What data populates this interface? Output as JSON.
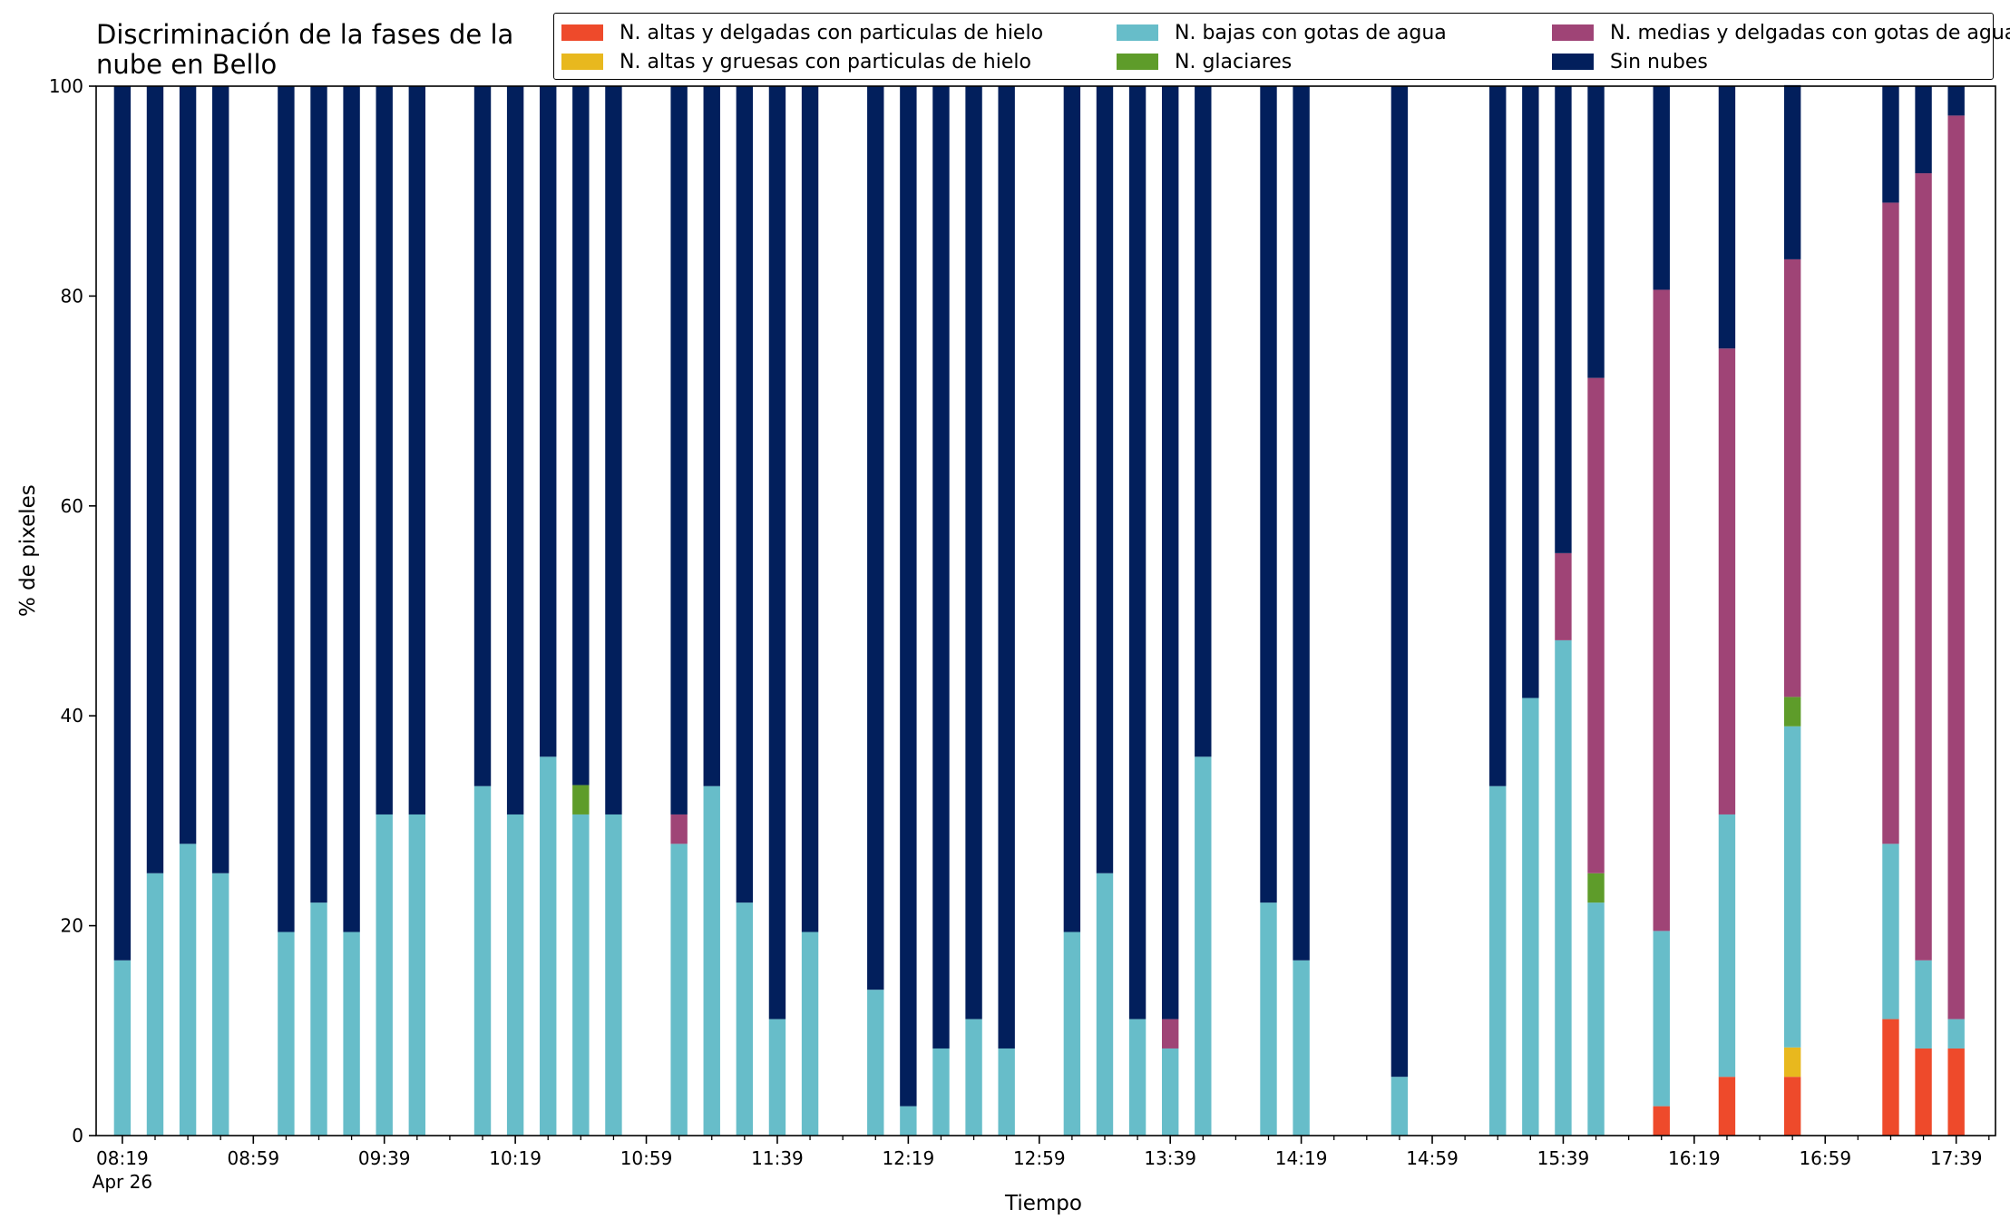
{
  "chart_data": {
    "type": "bar",
    "stacked": true,
    "title": "Discriminación de la fases de la\nnube en Bello",
    "xlabel": "Tiempo",
    "ylabel": "% de pixeles",
    "ylim": [
      0,
      100
    ],
    "yticks": [
      "0",
      "20",
      "40",
      "60",
      "80",
      "100"
    ],
    "xlim": [
      "08:11",
      "17:51"
    ],
    "xticks_labeled": [
      "08:19",
      "08:59",
      "09:39",
      "10:19",
      "10:59",
      "11:39",
      "12:19",
      "12:59",
      "13:39",
      "14:19",
      "14:59",
      "15:39",
      "16:19",
      "16:59",
      "17:39"
    ],
    "xticks_minor": [
      "08:29",
      "08:39",
      "08:49",
      "09:09",
      "09:19",
      "09:29",
      "09:49",
      "09:59",
      "10:09",
      "10:29",
      "10:39",
      "10:49",
      "11:09",
      "11:19",
      "11:29",
      "11:49",
      "11:59",
      "12:09",
      "12:29",
      "12:39",
      "12:49",
      "13:09",
      "13:19",
      "13:29",
      "13:49",
      "13:59",
      "14:09",
      "14:29",
      "14:39",
      "14:49",
      "15:09",
      "15:19",
      "15:29",
      "15:49",
      "15:59",
      "16:09",
      "16:29",
      "16:39",
      "16:49",
      "17:09",
      "17:19",
      "17:29",
      "17:49"
    ],
    "date_label": "Apr 26",
    "legend_position": "top",
    "legend_columns": 3,
    "grid": false,
    "x": [
      "08:19",
      "08:29",
      "08:39",
      "08:49",
      "09:09",
      "09:19",
      "09:29",
      "09:39",
      "09:49",
      "10:09",
      "10:19",
      "10:29",
      "10:39",
      "10:49",
      "11:09",
      "11:19",
      "11:29",
      "11:39",
      "11:49",
      "12:09",
      "12:19",
      "12:29",
      "12:39",
      "12:49",
      "13:09",
      "13:19",
      "13:29",
      "13:39",
      "13:49",
      "14:09",
      "14:19",
      "14:49",
      "15:19",
      "15:29",
      "15:39",
      "15:49",
      "16:09",
      "16:29",
      "16:49",
      "17:19",
      "17:29",
      "17:39"
    ],
    "series": [
      {
        "name": "N. altas y delgadas con particulas de hielo",
        "color": "#ee4a2b",
        "values": [
          0,
          0,
          0,
          0,
          0,
          0,
          0,
          0,
          0,
          0,
          0,
          0,
          0,
          0,
          0,
          0,
          0,
          0,
          0,
          0,
          0,
          0,
          0,
          0,
          0,
          0,
          0,
          0,
          0,
          0,
          0,
          0,
          0,
          0,
          0,
          0,
          2.8,
          5.6,
          5.6,
          11.1,
          8.3,
          8.3
        ]
      },
      {
        "name": "N. altas y gruesas con particulas de hielo",
        "color": "#e8b81e",
        "values": [
          0,
          0,
          0,
          0,
          0,
          0,
          0,
          0,
          0,
          0,
          0,
          0,
          0,
          0,
          0,
          0,
          0,
          0,
          0,
          0,
          0,
          0,
          0,
          0,
          0,
          0,
          0,
          0,
          0,
          0,
          0,
          0,
          0,
          0,
          0,
          0,
          0,
          0,
          2.8,
          0,
          0,
          0
        ]
      },
      {
        "name": "N. bajas con gotas de agua",
        "color": "#67bdc9",
        "values": [
          16.7,
          25,
          27.8,
          25,
          19.4,
          22.2,
          19.4,
          30.6,
          30.6,
          33.3,
          30.6,
          36.1,
          30.6,
          30.6,
          27.8,
          33.3,
          22.2,
          11.1,
          19.4,
          13.9,
          2.8,
          8.3,
          11.1,
          8.3,
          19.4,
          25,
          11.1,
          8.3,
          36.1,
          22.2,
          16.7,
          5.6,
          33.3,
          41.7,
          47.2,
          22.2,
          16.7,
          25,
          30.6,
          16.7,
          8.4,
          2.8
        ]
      },
      {
        "name": "N. glaciares",
        "color": "#5e9c2a",
        "values": [
          0,
          0,
          0,
          0,
          0,
          0,
          0,
          0,
          0,
          0,
          0,
          0,
          2.8,
          0,
          0,
          0,
          0,
          0,
          0,
          0,
          0,
          0,
          0,
          0,
          0,
          0,
          0,
          0,
          0,
          0,
          0,
          0,
          0,
          0,
          0,
          2.8,
          0,
          0,
          2.8,
          0,
          0,
          0
        ]
      },
      {
        "name": "N. medias y delgadas con gotas de agua",
        "color": "#9f4476",
        "values": [
          0,
          0,
          0,
          0,
          0,
          0,
          0,
          0,
          0,
          0,
          0,
          0,
          0,
          0,
          2.8,
          0,
          0,
          0,
          0,
          0,
          0,
          0,
          0,
          0,
          0,
          0,
          0,
          2.8,
          0,
          0,
          0,
          0,
          0,
          0,
          8.3,
          47.2,
          61.1,
          44.4,
          41.7,
          61.1,
          75,
          86.1
        ]
      },
      {
        "name": "Sin nubes",
        "color": "#021f5c",
        "values": [
          83.3,
          75,
          72.2,
          75,
          80.6,
          77.8,
          80.6,
          69.4,
          69.4,
          66.7,
          69.4,
          63.9,
          66.6,
          69.4,
          69.4,
          66.7,
          77.8,
          88.9,
          80.6,
          86.1,
          97.2,
          91.7,
          88.9,
          91.7,
          80.6,
          75,
          88.9,
          88.9,
          63.9,
          77.8,
          83.3,
          94.4,
          66.7,
          58.3,
          44.5,
          27.8,
          19.4,
          25,
          16.6,
          11.1,
          8.3,
          2.8
        ]
      }
    ]
  }
}
